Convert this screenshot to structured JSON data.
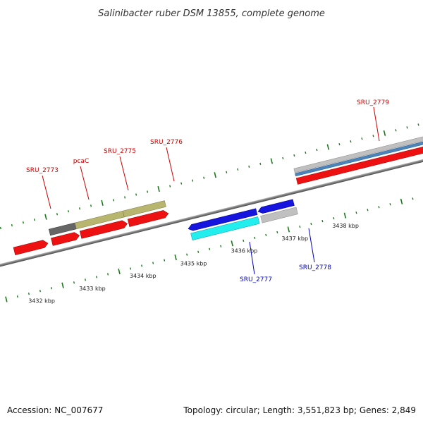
{
  "title": "Salinibacter ruber DSM 13855, complete genome",
  "footer": {
    "accession": "Accession: NC_007677",
    "summary": "Topology: circular; Length: 3,551,823 bp; Genes: 2,849"
  },
  "colors": {
    "forward_label": "#cc0000",
    "reverse_label": "#0000bb",
    "tick": "#1a7a1a",
    "backbone": "#888888"
  },
  "scale_labels": [
    "3432 kbp",
    "3433 kbp",
    "3434 kbp",
    "3435 kbp",
    "3436 kbp",
    "3437 kbp",
    "3438 kbp"
  ],
  "gene_labels": [
    {
      "name": "SRU_2773",
      "strand": "forward"
    },
    {
      "name": "pcaC",
      "strand": "forward"
    },
    {
      "name": "SRU_2775",
      "strand": "forward"
    },
    {
      "name": "SRU_2776",
      "strand": "forward"
    },
    {
      "name": "SRU_2779",
      "strand": "forward"
    },
    {
      "name": "SRU_2777",
      "strand": "reverse"
    },
    {
      "name": "SRU_2778",
      "strand": "reverse"
    }
  ],
  "feature_colors": {
    "cds": "#ee1111",
    "magenta": "#ee1199",
    "olive": "#b7b56e",
    "dark_grey": "#666666",
    "light_grey": "#c0c0c0",
    "steel_blue": "#4a84bb",
    "blue": "#1515dd",
    "cyan": "#22eeee"
  }
}
